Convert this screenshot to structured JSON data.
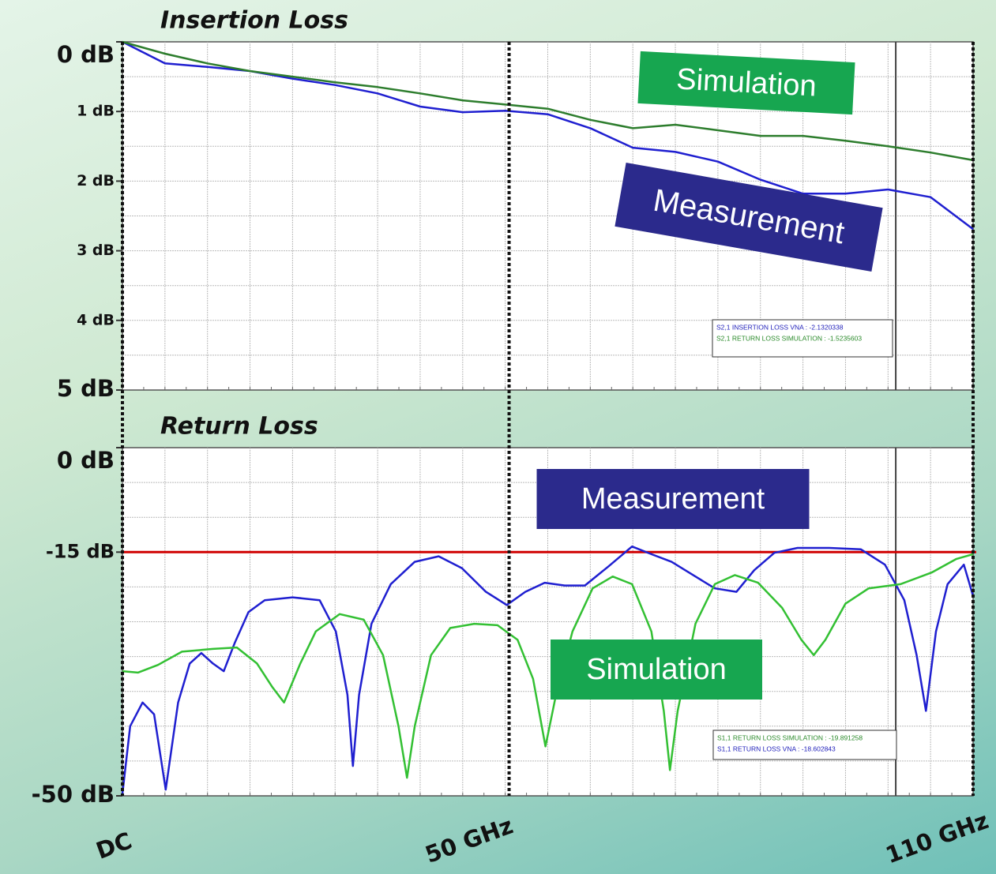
{
  "chart_data": [
    {
      "type": "line",
      "title": "Insertion Loss",
      "xlim": [
        0,
        110
      ],
      "ylim": [
        5,
        0
      ],
      "yticks": [
        {
          "value": 0,
          "label": "0 dB"
        },
        {
          "value": 1,
          "label": "1 dB"
        },
        {
          "value": 2,
          "label": "2 dB"
        },
        {
          "value": 3,
          "label": "3 dB"
        },
        {
          "value": 4,
          "label": "4 dB"
        },
        {
          "value": 5,
          "label": "5 dB"
        }
      ],
      "grid": true,
      "marker": 100,
      "series": [
        {
          "name": "Measurement",
          "color": "#1f1fd0",
          "box_color": "#2b2a8c",
          "x": [
            0,
            5.5,
            11,
            16.5,
            22,
            27.5,
            33,
            38.5,
            44,
            49.5,
            55,
            60.5,
            66,
            71.5,
            77,
            82.5,
            88,
            93.5,
            99,
            104.5,
            110
          ],
          "values": [
            0,
            0.31,
            0.36,
            0.42,
            0.53,
            0.62,
            0.74,
            0.93,
            1.01,
            0.99,
            1.04,
            1.24,
            1.52,
            1.58,
            1.72,
            1.98,
            2.18,
            2.18,
            2.12,
            2.23,
            2.69
          ]
        },
        {
          "name": "Simulation",
          "color": "#2d7d2d",
          "box_color": "#17a650",
          "x": [
            0,
            5.5,
            11,
            16.5,
            22,
            27.5,
            33,
            38.5,
            44,
            49.5,
            55,
            60.5,
            66,
            71.5,
            77,
            82.5,
            88,
            93.5,
            99,
            104.5,
            110
          ],
          "values": [
            0,
            0.17,
            0.31,
            0.42,
            0.5,
            0.58,
            0.65,
            0.74,
            0.84,
            0.9,
            0.96,
            1.12,
            1.24,
            1.19,
            1.27,
            1.35,
            1.35,
            1.42,
            1.5,
            1.59,
            1.7
          ]
        }
      ],
      "readouts": [
        "S2,1 INSERTION LOSS VNA : -2.1320338",
        "S2,1 RETURN LOSS SIMULATION : -1.5235603"
      ]
    },
    {
      "type": "line",
      "title": "Return Loss",
      "xlim": [
        0,
        110
      ],
      "ylim": [
        -50,
        0
      ],
      "yticks": [
        {
          "value": 0,
          "label": "0 dB"
        },
        {
          "value": -15,
          "label": "-15 dB",
          "color": "#d00000"
        },
        {
          "value": -50,
          "label": "-50 dB"
        }
      ],
      "xticks": [
        {
          "value": 0,
          "label": "DC"
        },
        {
          "value": 50,
          "label": "50 GHz"
        },
        {
          "value": 110,
          "label": "110 GHz"
        }
      ],
      "grid": true,
      "marker": 100,
      "series": [
        {
          "name": "Measurement",
          "color": "#1f1fd0",
          "box_color": "#2b2a8c",
          "x": [
            0,
            1.0,
            2.6,
            4.1,
            5.6,
            7.2,
            8.7,
            10.2,
            11.7,
            13.1,
            14.5,
            16.3,
            18.4,
            22.0,
            25.5,
            27.6,
            29.1,
            29.8,
            30.6,
            32.2,
            34.7,
            37.8,
            40.9,
            43.9,
            47.0,
            49.7,
            52.1,
            54.6,
            57.2,
            59.8,
            62.8,
            65.9,
            68.4,
            71.0,
            74.1,
            76.6,
            79.4,
            81.7,
            84.3,
            87.3,
            91.4,
            95.5,
            98.6,
            101.1,
            102.7,
            103.9,
            105.2,
            106.7,
            108.8,
            110
          ],
          "values": [
            -49.7,
            -40.0,
            -36.6,
            -38.3,
            -49.1,
            -36.6,
            -31.0,
            -29.5,
            -31.0,
            -32.1,
            -28.1,
            -23.6,
            -21.9,
            -21.5,
            -21.9,
            -26.4,
            -35.5,
            -45.7,
            -35.5,
            -25.3,
            -19.6,
            -16.4,
            -15.6,
            -17.3,
            -20.7,
            -22.6,
            -20.7,
            -19.4,
            -19.8,
            -19.8,
            -17.1,
            -14.2,
            -15.3,
            -16.4,
            -18.5,
            -20.2,
            -20.7,
            -17.6,
            -15.1,
            -14.4,
            -14.4,
            -14.6,
            -16.8,
            -21.9,
            -29.8,
            -37.8,
            -26.4,
            -19.6,
            -16.8,
            -21.3
          ]
        },
        {
          "name": "Simulation",
          "color": "#33c033",
          "box_color": "#17a650",
          "x": [
            0,
            2.0,
            4.6,
            7.7,
            11.7,
            14.8,
            17.4,
            19.4,
            20.9,
            23.0,
            25.0,
            28.1,
            31.2,
            33.7,
            35.7,
            36.8,
            37.8,
            39.9,
            42.4,
            45.5,
            48.5,
            51.1,
            53.1,
            54.7,
            56.2,
            58.2,
            60.8,
            63.4,
            65.9,
            68.4,
            70.0,
            70.8,
            71.8,
            74.1,
            76.6,
            79.2,
            82.2,
            85.3,
            87.8,
            89.4,
            90.9,
            93.5,
            96.5,
            100.6,
            104.7,
            107.8,
            110
          ],
          "values": [
            -32.1,
            -32.3,
            -31.2,
            -29.3,
            -28.9,
            -28.7,
            -31.0,
            -34.4,
            -36.6,
            -31.0,
            -26.4,
            -23.9,
            -24.7,
            -29.8,
            -40.0,
            -47.4,
            -40.0,
            -29.8,
            -25.9,
            -25.3,
            -25.5,
            -27.6,
            -33.2,
            -42.9,
            -34.8,
            -26.4,
            -20.2,
            -18.5,
            -19.6,
            -26.4,
            -37.8,
            -46.3,
            -37.8,
            -25.3,
            -19.6,
            -18.3,
            -19.4,
            -23.0,
            -27.6,
            -29.8,
            -27.6,
            -22.4,
            -20.2,
            -19.6,
            -17.9,
            -16.0,
            -15.3
          ]
        }
      ],
      "readouts": [
        "S1,1 RETURN LOSS SIMULATION : -19.891258",
        "S1,1 RETURN LOSS VNA : -18.602843"
      ]
    }
  ]
}
